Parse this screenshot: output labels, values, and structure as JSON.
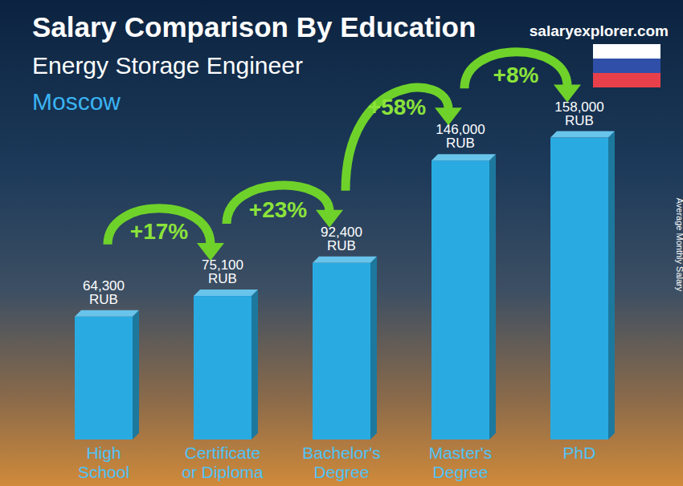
{
  "chart_data": {
    "type": "bar",
    "title": "Salary Comparison By Education",
    "subtitle": "Energy Storage Engineer",
    "location": "Moscow",
    "source": "salaryexplorer.com",
    "y_label": "Average Monthly Salary",
    "categories": [
      "High School",
      "Certificate or Diploma",
      "Bachelor's Degree",
      "Master's Degree",
      "PhD"
    ],
    "values": [
      64300,
      75100,
      92400,
      146000,
      158000
    ],
    "value_labels": [
      "64,300 RUB",
      "75,100 RUB",
      "92,400 RUB",
      "146,000 RUB",
      "158,000 RUB"
    ],
    "annotations": [
      {
        "text": "+17%",
        "from": "High School",
        "to": "Certificate or Diploma"
      },
      {
        "text": "+23%",
        "from": "Certificate or Diploma",
        "to": "Bachelor's Degree"
      },
      {
        "text": "+58%",
        "from": "Bachelor's Degree",
        "to": "Master's Degree"
      },
      {
        "text": "+8%",
        "from": "Master's Degree",
        "to": "PhD"
      }
    ],
    "color": "#29abe2",
    "ylim": [
      0,
      170000
    ],
    "yticks": [],
    "grid": false,
    "data_labels": true,
    "tick_labels": "x"
  }
}
